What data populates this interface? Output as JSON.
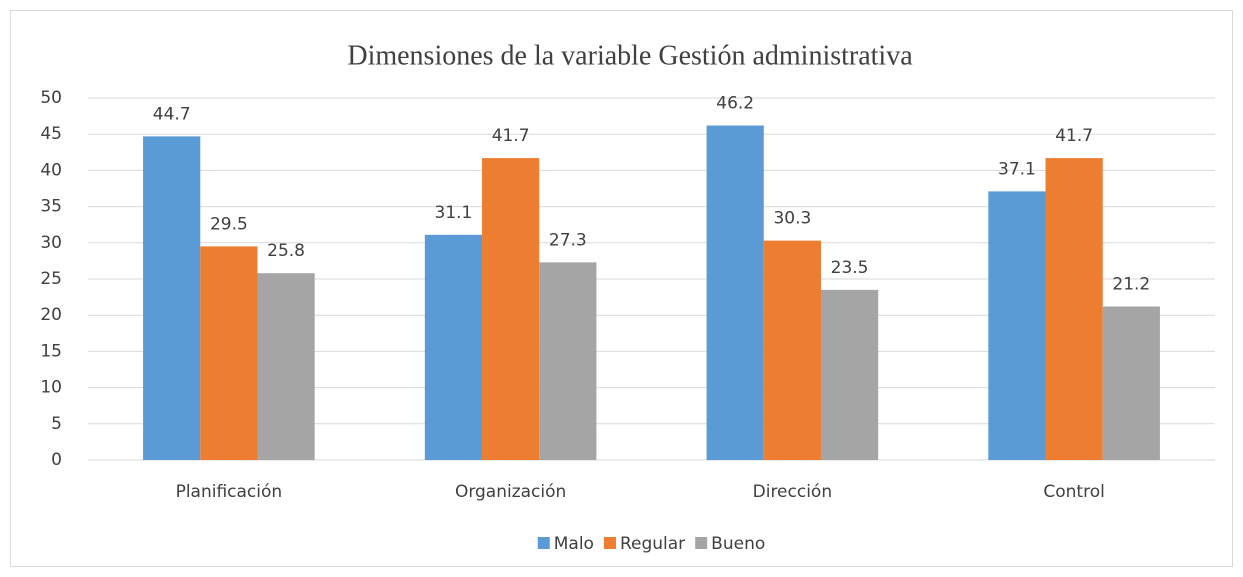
{
  "chart_data": {
    "type": "bar",
    "title": "Dimensiones de la variable Gestión administrativa",
    "categories": [
      "Planificación",
      "Organización",
      "Dirección",
      "Control"
    ],
    "series": [
      {
        "name": "Malo",
        "color": "#5b9bd5",
        "values": [
          44.7,
          31.1,
          46.2,
          37.1
        ]
      },
      {
        "name": "Regular",
        "color": "#ed7d31",
        "values": [
          29.5,
          41.7,
          30.3,
          41.7
        ]
      },
      {
        "name": "Bueno",
        "color": "#a5a5a5",
        "values": [
          25.8,
          27.3,
          23.5,
          21.2
        ]
      }
    ],
    "ylim": [
      0,
      50
    ],
    "yticks": [
      0,
      5,
      10,
      15,
      20,
      25,
      30,
      35,
      40,
      45,
      50
    ],
    "grid": true,
    "legend": "bottom"
  }
}
